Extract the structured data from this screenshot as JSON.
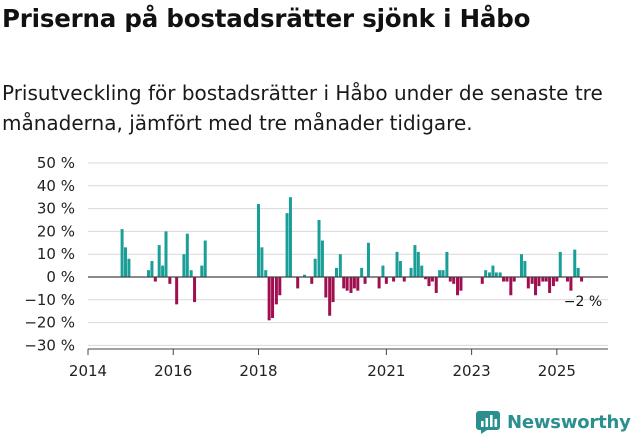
{
  "title": "Priserna på bostadsrätter sjönk i Håbo",
  "subtitle": "Prisutveckling för bostadsrätter i Håbo under de senaste tre månaderna, jämfört med tre månader tidigare.",
  "brand": {
    "name": "Newsworthy",
    "icon": "newsworthy-logo-icon"
  },
  "colors": {
    "positive": "#1a9e98",
    "negative": "#a00e4f",
    "grid": "#d9d9d9",
    "zero_line": "#444444",
    "text": "#1a1a1a"
  },
  "chart_data": {
    "type": "bar",
    "unit": "%",
    "y_ticks": [
      50,
      40,
      30,
      20,
      10,
      0,
      -10,
      -20,
      -30
    ],
    "y_tick_labels": [
      "50 %",
      "40 %",
      "30 %",
      "20 %",
      "10 %",
      "0 %",
      "−10 %",
      "−20 %",
      "−30 %"
    ],
    "ylim": [
      -30,
      50
    ],
    "x_ticks": [
      2014,
      2016,
      2018,
      2021,
      2023,
      2025
    ],
    "x_tick_labels": [
      "2014",
      "2016",
      "2018",
      "2021",
      "2023",
      "2025"
    ],
    "x_range": [
      2014.0,
      2026.2
    ],
    "grid": true,
    "last_value_label": "−2 %",
    "series": [
      {
        "name": "Prisutveckling",
        "points": [
          {
            "x": 2014.8,
            "v": 21
          },
          {
            "x": 2014.88,
            "v": 13
          },
          {
            "x": 2014.96,
            "v": 8
          },
          {
            "x": 2015.42,
            "v": 3
          },
          {
            "x": 2015.5,
            "v": 7
          },
          {
            "x": 2015.58,
            "v": -2
          },
          {
            "x": 2015.67,
            "v": 14
          },
          {
            "x": 2015.75,
            "v": 5
          },
          {
            "x": 2015.83,
            "v": 20
          },
          {
            "x": 2015.92,
            "v": -3
          },
          {
            "x": 2016.08,
            "v": -12
          },
          {
            "x": 2016.25,
            "v": 10
          },
          {
            "x": 2016.33,
            "v": 19
          },
          {
            "x": 2016.42,
            "v": 3
          },
          {
            "x": 2016.5,
            "v": -11
          },
          {
            "x": 2016.67,
            "v": 5
          },
          {
            "x": 2016.75,
            "v": 16
          },
          {
            "x": 2018.0,
            "v": 32
          },
          {
            "x": 2018.08,
            "v": 13
          },
          {
            "x": 2018.17,
            "v": 3
          },
          {
            "x": 2018.25,
            "v": -19
          },
          {
            "x": 2018.33,
            "v": -18
          },
          {
            "x": 2018.42,
            "v": -12
          },
          {
            "x": 2018.5,
            "v": -8
          },
          {
            "x": 2018.67,
            "v": 28
          },
          {
            "x": 2018.75,
            "v": 35
          },
          {
            "x": 2018.92,
            "v": -5
          },
          {
            "x": 2019.08,
            "v": 1
          },
          {
            "x": 2019.25,
            "v": -3
          },
          {
            "x": 2019.33,
            "v": 8
          },
          {
            "x": 2019.42,
            "v": 25
          },
          {
            "x": 2019.5,
            "v": 16
          },
          {
            "x": 2019.58,
            "v": -9
          },
          {
            "x": 2019.67,
            "v": -17
          },
          {
            "x": 2019.75,
            "v": -11
          },
          {
            "x": 2019.83,
            "v": 4
          },
          {
            "x": 2019.92,
            "v": 10
          },
          {
            "x": 2020.0,
            "v": -5
          },
          {
            "x": 2020.08,
            "v": -6
          },
          {
            "x": 2020.17,
            "v": -7
          },
          {
            "x": 2020.25,
            "v": -5
          },
          {
            "x": 2020.33,
            "v": -6
          },
          {
            "x": 2020.42,
            "v": 4
          },
          {
            "x": 2020.5,
            "v": -3
          },
          {
            "x": 2020.58,
            "v": 15
          },
          {
            "x": 2020.83,
            "v": -5
          },
          {
            "x": 2020.92,
            "v": 5
          },
          {
            "x": 2021.0,
            "v": -3
          },
          {
            "x": 2021.17,
            "v": -2
          },
          {
            "x": 2021.25,
            "v": 11
          },
          {
            "x": 2021.33,
            "v": 7
          },
          {
            "x": 2021.42,
            "v": -2
          },
          {
            "x": 2021.58,
            "v": 4
          },
          {
            "x": 2021.67,
            "v": 14
          },
          {
            "x": 2021.75,
            "v": 11
          },
          {
            "x": 2021.83,
            "v": 5
          },
          {
            "x": 2021.92,
            "v": -1
          },
          {
            "x": 2022.0,
            "v": -4
          },
          {
            "x": 2022.08,
            "v": -2
          },
          {
            "x": 2022.17,
            "v": -7
          },
          {
            "x": 2022.25,
            "v": 3
          },
          {
            "x": 2022.33,
            "v": 3
          },
          {
            "x": 2022.42,
            "v": 11
          },
          {
            "x": 2022.5,
            "v": -2
          },
          {
            "x": 2022.58,
            "v": -3
          },
          {
            "x": 2022.67,
            "v": -8
          },
          {
            "x": 2022.75,
            "v": -6
          },
          {
            "x": 2023.25,
            "v": -3
          },
          {
            "x": 2023.33,
            "v": 3
          },
          {
            "x": 2023.42,
            "v": 2
          },
          {
            "x": 2023.5,
            "v": 5
          },
          {
            "x": 2023.58,
            "v": 2
          },
          {
            "x": 2023.67,
            "v": 2
          },
          {
            "x": 2023.75,
            "v": -2
          },
          {
            "x": 2023.83,
            "v": -2
          },
          {
            "x": 2023.92,
            "v": -8
          },
          {
            "x": 2024.0,
            "v": -2
          },
          {
            "x": 2024.17,
            "v": 10
          },
          {
            "x": 2024.25,
            "v": 7
          },
          {
            "x": 2024.33,
            "v": -5
          },
          {
            "x": 2024.42,
            "v": -3
          },
          {
            "x": 2024.5,
            "v": -8
          },
          {
            "x": 2024.58,
            "v": -4
          },
          {
            "x": 2024.67,
            "v": -2
          },
          {
            "x": 2024.75,
            "v": -2
          },
          {
            "x": 2024.83,
            "v": -7
          },
          {
            "x": 2024.92,
            "v": -4
          },
          {
            "x": 2025.0,
            "v": -2
          },
          {
            "x": 2025.08,
            "v": 11
          },
          {
            "x": 2025.25,
            "v": -2
          },
          {
            "x": 2025.33,
            "v": -6
          },
          {
            "x": 2025.42,
            "v": 12
          },
          {
            "x": 2025.5,
            "v": 4
          },
          {
            "x": 2025.58,
            "v": -2
          }
        ]
      }
    ]
  }
}
